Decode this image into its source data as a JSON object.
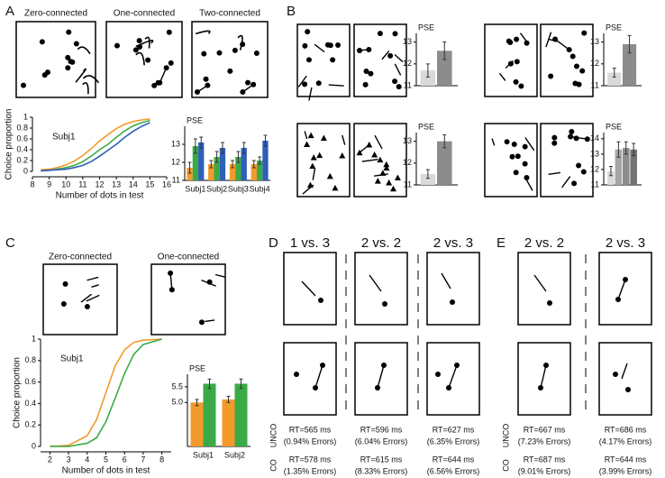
{
  "chart_data": [
    {
      "type": "line",
      "title": "Subj1",
      "xlabel": "Number of dots in test",
      "ylabel": "Choice proportion",
      "x": [
        8.5,
        9,
        9.5,
        10,
        10.5,
        11,
        11.5,
        12,
        12.5,
        13,
        13.5,
        14,
        14.5,
        15
      ],
      "series": [
        {
          "color": "#f39a2b",
          "values": [
            0.03,
            0.04,
            0.07,
            0.12,
            0.19,
            0.29,
            0.42,
            0.56,
            0.68,
            0.79,
            0.87,
            0.92,
            0.95,
            0.97
          ]
        },
        {
          "color": "#3aaa47",
          "values": [
            0.01,
            0.02,
            0.04,
            0.07,
            0.11,
            0.18,
            0.28,
            0.4,
            0.5,
            0.63,
            0.75,
            0.84,
            0.9,
            0.94
          ]
        },
        {
          "color": "#2f5fb7",
          "values": [
            0.01,
            0.02,
            0.03,
            0.04,
            0.07,
            0.11,
            0.18,
            0.28,
            0.39,
            0.5,
            0.63,
            0.74,
            0.83,
            0.9
          ]
        }
      ],
      "xlim": [
        8,
        16
      ],
      "xticks": [
        8,
        9,
        10,
        11,
        12,
        13,
        14,
        15,
        16
      ],
      "ylim": [
        0,
        1
      ],
      "yticks": [
        0,
        0.2,
        0.4,
        0.6,
        0.8,
        1
      ]
    },
    {
      "type": "bar",
      "ylabel": "PSE",
      "categories": [
        "Subj1",
        "Subj2",
        "Subj3",
        "Subj4"
      ],
      "series": [
        {
          "color": "#f39a2b",
          "values": [
            11.7,
            11.9,
            11.9,
            11.9
          ],
          "errors": [
            0.3,
            0.2,
            0.2,
            0.2
          ]
        },
        {
          "color": "#3aaa47",
          "values": [
            12.9,
            12.3,
            12.3,
            12.1
          ],
          "errors": [
            0.4,
            0.3,
            0.3,
            0.2
          ]
        },
        {
          "color": "#2f5fb7",
          "values": [
            13.1,
            12.8,
            12.8,
            13.2
          ],
          "errors": [
            0.3,
            0.3,
            0.3,
            0.3
          ]
        }
      ],
      "ylim": [
        11,
        14
      ],
      "yticks": [
        11,
        12,
        13
      ]
    },
    {
      "type": "bar",
      "ylabel": "PSE",
      "values": [
        11.7,
        12.6
      ],
      "errors": [
        0.3,
        0.4
      ],
      "colors": [
        "#d9d9d9",
        "#8c8c8c"
      ],
      "ylim": [
        11,
        13.4
      ],
      "yticks": [
        11,
        12,
        13
      ]
    },
    {
      "type": "bar",
      "ylabel": "PSE",
      "values": [
        11.6,
        12.9
      ],
      "errors": [
        0.2,
        0.4
      ],
      "colors": [
        "#d9d9d9",
        "#8c8c8c"
      ],
      "ylim": [
        11,
        13.4
      ],
      "yticks": [
        11,
        12,
        13
      ]
    },
    {
      "type": "bar",
      "ylabel": "PSE",
      "values": [
        11.5,
        13.0
      ],
      "errors": [
        0.2,
        0.3
      ],
      "colors": [
        "#d9d9d9",
        "#8c8c8c"
      ],
      "ylim": [
        11,
        13.4
      ],
      "yticks": [
        11,
        12,
        13
      ]
    },
    {
      "type": "bar",
      "ylabel": "PSE",
      "values": [
        11.9,
        13.3,
        13.4,
        13.3
      ],
      "errors": [
        0.3,
        0.5,
        0.4,
        0.4
      ],
      "colors": [
        "#d9d9d9",
        "#a6a6a6",
        "#8c8c8c",
        "#737373"
      ],
      "ylim": [
        11,
        14.4
      ],
      "yticks": [
        11,
        12,
        13,
        14
      ]
    },
    {
      "type": "line",
      "title": "Subj1",
      "xlabel": "Number of dots in test",
      "ylabel": "Choice proportion",
      "x": [
        2,
        3,
        4,
        4.5,
        5,
        5.5,
        6,
        6.5,
        7,
        8
      ],
      "series": [
        {
          "color": "#f39a2b",
          "values": [
            0,
            0.01,
            0.1,
            0.25,
            0.5,
            0.75,
            0.9,
            0.97,
            0.99,
            1
          ]
        },
        {
          "color": "#3aaa47",
          "values": [
            0,
            0,
            0.03,
            0.08,
            0.23,
            0.45,
            0.68,
            0.86,
            0.95,
            1
          ]
        }
      ],
      "xlim": [
        1.5,
        8.5
      ],
      "xticks": [
        2,
        3,
        4,
        5,
        6,
        7,
        8
      ],
      "ylim": [
        0,
        1
      ],
      "yticks": [
        0,
        0.2,
        0.4,
        0.6,
        0.8,
        1
      ]
    },
    {
      "type": "bar",
      "ylabel": "PSE",
      "categories": [
        "Subj1",
        "Subj2"
      ],
      "series": [
        {
          "color": "#f39a2b",
          "values": [
            5.0,
            5.1
          ],
          "errors": [
            0.1,
            0.1
          ]
        },
        {
          "color": "#3aaa47",
          "values": [
            5.6,
            5.6
          ],
          "errors": [
            0.15,
            0.15
          ]
        }
      ],
      "ylim": [
        3.6,
        5.9
      ],
      "yticks": [
        {
          "value": 5.0,
          "label": "5.0"
        },
        {
          "value": 5.5,
          "label": "5.5"
        }
      ]
    }
  ],
  "panels": {
    "labels": [
      "A",
      "B",
      "C",
      "D",
      "E"
    ],
    "stimulus_labels_a": [
      "Zero-connected",
      "One-connected",
      "Two-connected"
    ],
    "stimulus_labels_c": [
      "Zero-connected",
      "One-connected"
    ],
    "panel_d": {
      "columns": [
        "1 vs. 3",
        "2 vs. 2",
        "2 vs. 3"
      ],
      "rows": [
        "UNCO",
        "CO"
      ],
      "results": [
        [
          [
            "RT=565 ms",
            "(0.94% Errors)"
          ],
          [
            "RT=596 ms",
            "(6.04% Errors)"
          ],
          [
            "RT=627 ms",
            "(6.35% Errors)"
          ]
        ],
        [
          [
            "RT=578 ms",
            "(1.35% Errors)"
          ],
          [
            "RT=615 ms",
            "(8.33% Errors)"
          ],
          [
            "RT=644 ms",
            "(6.56% Errors)"
          ]
        ]
      ]
    },
    "panel_e": {
      "columns": [
        "2 vs. 2",
        "2 vs. 3"
      ],
      "rows": [
        "UNCO",
        "CO"
      ],
      "results": [
        [
          [
            "RT=667 ms",
            "(7.23% Errors)"
          ],
          [
            "RT=686 ms",
            "(4.17% Errors)"
          ]
        ],
        [
          [
            "RT=687 ms",
            "(9.01% Errors)"
          ],
          [
            "RT=644 ms",
            "(3.99% Errors)"
          ]
        ]
      ]
    }
  }
}
